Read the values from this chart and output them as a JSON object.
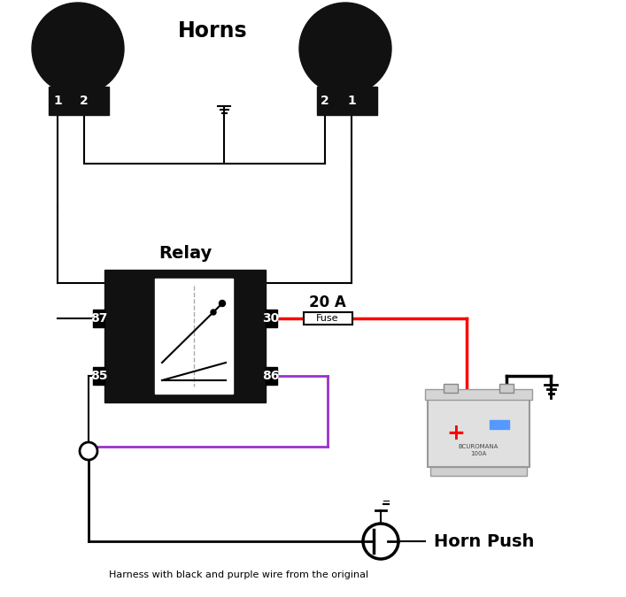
{
  "title": "Horns",
  "subtitle": "Horn Push",
  "relay_label": "Relay",
  "fuse_label": "Fuse",
  "fuse_rating": "20 A",
  "harness_label": "Harness with black and purple wire from the original",
  "bg_color": "#ffffff",
  "horn_color": "#111111",
  "relay_color": "#111111",
  "wire_black": "#000000",
  "wire_red": "#ff0000",
  "wire_purple": "#9932cc",
  "figsize": [
    7.07,
    6.75
  ],
  "dpi": 100
}
